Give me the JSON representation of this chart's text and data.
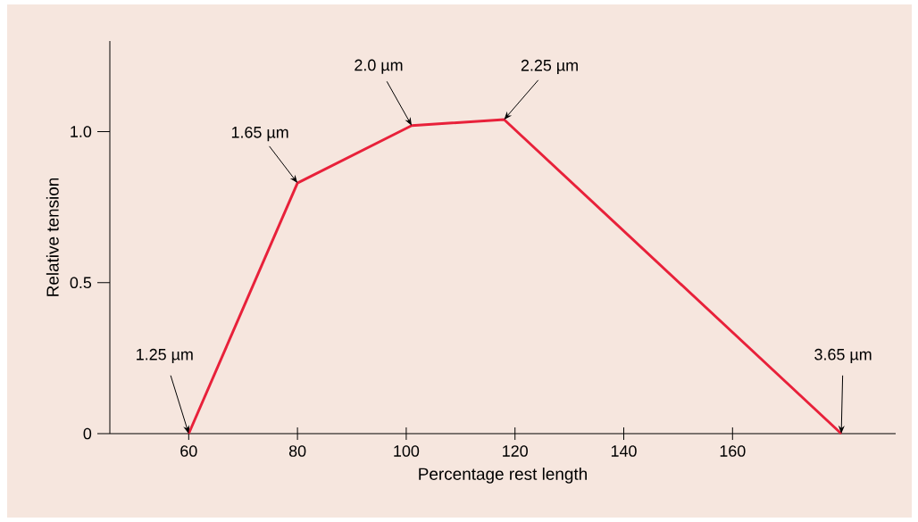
{
  "chart_data": {
    "type": "line",
    "xlabel": "Percentage rest length",
    "ylabel": "Relative tension",
    "color": "#e8213a",
    "x": [
      60,
      80,
      101,
      118,
      180
    ],
    "values": [
      0,
      0.83,
      1.02,
      1.04,
      0
    ],
    "xlim": [
      45.5,
      190
    ],
    "ylim": [
      0,
      1.3
    ],
    "xticks": [
      60,
      80,
      100,
      120,
      140,
      160
    ],
    "yticks": [
      {
        "value": 0,
        "label": "0"
      },
      {
        "value": 0.5,
        "label": "0.5"
      },
      {
        "value": 1,
        "label": "1.0"
      }
    ],
    "annotations": [
      {
        "text": "1.25 µm",
        "x": 60,
        "y": 0
      },
      {
        "text": "1.65 µm",
        "x": 80,
        "y": 0.83
      },
      {
        "text": "2.0 µm",
        "x": 101,
        "y": 1.02
      },
      {
        "text": "2.25 µm",
        "x": 118,
        "y": 1.04
      },
      {
        "text": "3.65 µm",
        "x": 180,
        "y": 0
      }
    ]
  }
}
